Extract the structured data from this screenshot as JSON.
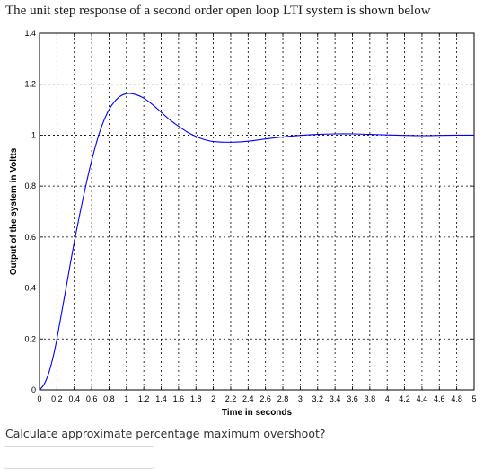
{
  "question": {
    "title": "The unit step response of a second order open loop LTI system is shown below",
    "prompt": "Calculate approximate percentage maximum overshoot?",
    "answer_value": ""
  },
  "chart_data": {
    "type": "line",
    "title": "",
    "xlabel": "Time in seconds",
    "ylabel": "Output of the system in Voltts",
    "xlim": [
      0,
      5
    ],
    "ylim": [
      0,
      1.4
    ],
    "grid": true,
    "legend": "none",
    "xticks": [
      0,
      0.2,
      0.4,
      0.6,
      0.8,
      1,
      1.2,
      1.4,
      1.6,
      1.8,
      2,
      2.2,
      2.4,
      2.6,
      2.8,
      3,
      3.2,
      3.4,
      3.6,
      3.8,
      4,
      4.2,
      4.4,
      4.6,
      4.8,
      5
    ],
    "xtick_labels": [
      "0",
      "0.2",
      "0.4",
      "0.6",
      "0.8",
      "1",
      "1.2",
      "1.4",
      "1.6",
      "1.8",
      "2",
      "2.2",
      "2.4",
      "2.6",
      "2.8",
      "3",
      "3.2",
      "3.4",
      "3.6",
      "3.8",
      "4",
      "4.2",
      "4.4",
      "4.6",
      "4.8",
      "5"
    ],
    "yticks": [
      0,
      0.2,
      0.4,
      0.6,
      0.8,
      1,
      1.2,
      1.4
    ],
    "ytick_labels": [
      "0",
      "0.2",
      "0.4",
      "0.6",
      "0.8",
      "1",
      "1.2",
      "1.4"
    ],
    "line_color": "#0000ff",
    "grid_color": "#000000",
    "series": [
      {
        "x": [
          0,
          0.05,
          0.1,
          0.15,
          0.2,
          0.3,
          0.4,
          0.5,
          0.6,
          0.7,
          0.8,
          0.9,
          1.0,
          1.1,
          1.2,
          1.3,
          1.4,
          1.5,
          1.6,
          1.7,
          1.8,
          1.9,
          2.0,
          2.2,
          2.4,
          2.6,
          2.8,
          3.0,
          3.2,
          3.4,
          3.6,
          3.8,
          4.0,
          4.2,
          4.4,
          4.6,
          4.8,
          5.0
        ],
        "y": [
          0,
          0.02,
          0.06,
          0.12,
          0.2,
          0.39,
          0.58,
          0.75,
          0.9,
          1.02,
          1.1,
          1.145,
          1.163,
          1.16,
          1.145,
          1.12,
          1.09,
          1.06,
          1.035,
          1.012,
          0.995,
          0.982,
          0.975,
          0.972,
          0.976,
          0.985,
          0.993,
          0.999,
          1.003,
          1.005,
          1.005,
          1.003,
          1.001,
          0.999,
          0.998,
          0.999,
          1.0,
          1.0
        ]
      }
    ]
  }
}
